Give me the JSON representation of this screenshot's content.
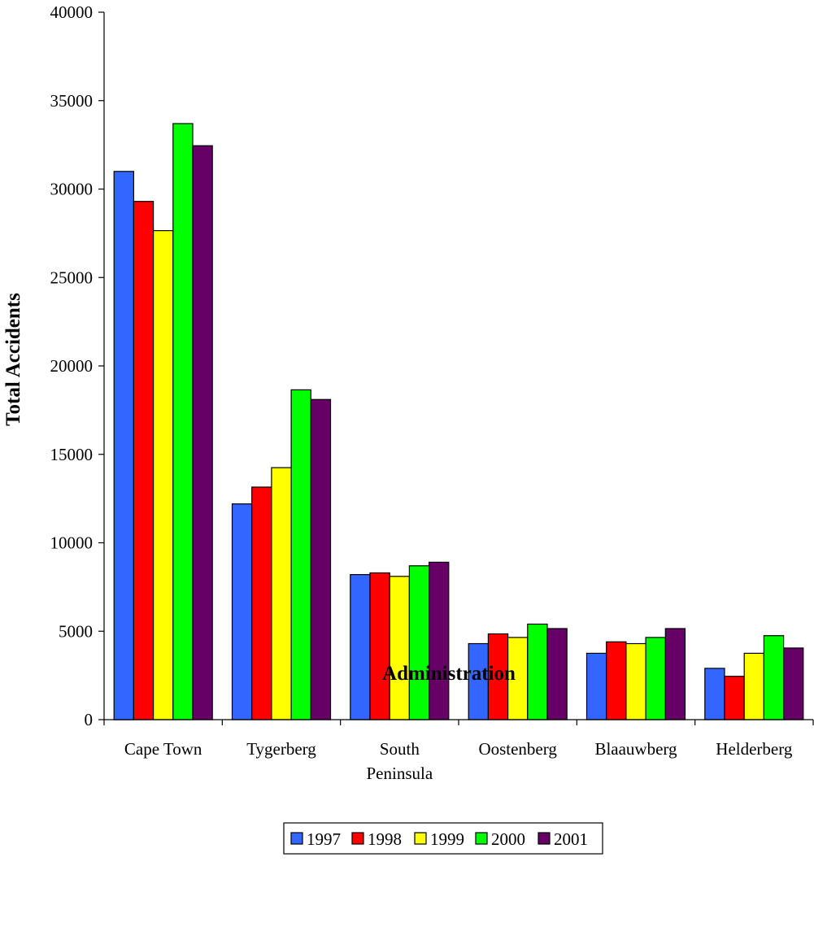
{
  "chart_data": {
    "type": "bar",
    "categories": [
      [
        "Cape Town"
      ],
      [
        "Tygerberg"
      ],
      [
        "South",
        "Peninsula"
      ],
      [
        "Oostenberg"
      ],
      [
        "Blaauwberg"
      ],
      [
        "Helderberg"
      ]
    ],
    "series": [
      {
        "name": "1997",
        "color": "#3366ff",
        "values": [
          31000,
          12200,
          8200,
          4300,
          3750,
          2900
        ]
      },
      {
        "name": "1998",
        "color": "#ff0000",
        "values": [
          29300,
          13150,
          8300,
          4850,
          4400,
          2450
        ]
      },
      {
        "name": "1999",
        "color": "#ffff00",
        "values": [
          27650,
          14250,
          8100,
          4650,
          4300,
          3750
        ]
      },
      {
        "name": "2000",
        "color": "#00ff00",
        "values": [
          33700,
          18650,
          8700,
          5400,
          4650,
          4750
        ]
      },
      {
        "name": "2001",
        "color": "#660066",
        "values": [
          32450,
          18100,
          8900,
          5150,
          5150,
          4050
        ]
      }
    ],
    "xlabel": "Administration",
    "ylabel": "Total Accidents",
    "ylim": [
      0,
      40000
    ],
    "yticks": [
      0,
      5000,
      10000,
      15000,
      20000,
      25000,
      30000,
      35000,
      40000
    ],
    "grid": false,
    "legend_position": "bottom"
  }
}
